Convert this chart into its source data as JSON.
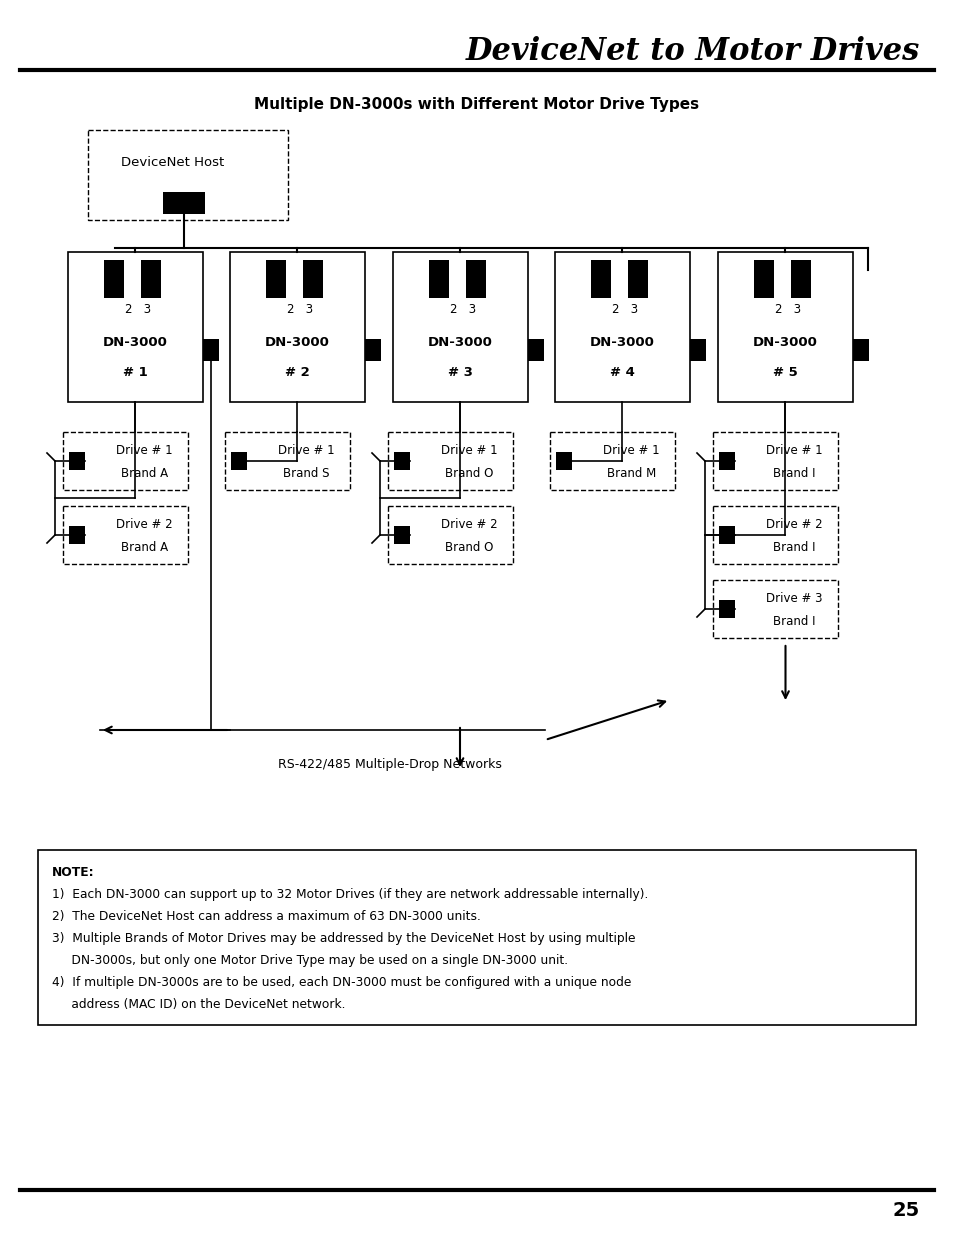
{
  "title": "DeviceNet to Motor Drives",
  "subtitle": "Multiple DN-3000s with Different Motor Drive Types",
  "bg_color": "#ffffff",
  "page_number": "25",
  "dn_labels": [
    "DN-3000\n# 1",
    "DN-3000\n# 2",
    "DN-3000\n# 3",
    "DN-3000\n# 4",
    "DN-3000\n# 5"
  ],
  "drive_configs": [
    [
      "Drive # 1\nBrand A",
      "Drive # 2\nBrand A"
    ],
    [
      "Drive # 1\nBrand S"
    ],
    [
      "Drive # 1\nBrand O",
      "Drive # 2\nBrand O"
    ],
    [
      "Drive # 1\nBrand M"
    ],
    [
      "Drive # 1\nBrand I",
      "Drive # 2\nBrand I",
      "Drive # 3\nBrand I"
    ]
  ],
  "rs422_label": "RS-422/485 Multiple-Drop Networks",
  "note_lines": [
    [
      "NOTE:",
      true
    ],
    [
      "1)  Each DN-3000 can support up to 32 Motor Drives (if they are network addressable internally).",
      false
    ],
    [
      "2)  The DeviceNet Host can address a maximum of 63 DN-3000 units.",
      false
    ],
    [
      "3)  Multiple Brands of Motor Drives may be addressed by the DeviceNet Host by using multiple",
      false
    ],
    [
      "     DN-3000s, but only one Motor Drive Type may be used on a single DN-3000 unit.",
      false
    ],
    [
      "4)  If multiple DN-3000s are to be used, each DN-3000 must be configured with a unique node",
      false
    ],
    [
      "     address (MAC ID) on the DeviceNet network.",
      false
    ]
  ]
}
